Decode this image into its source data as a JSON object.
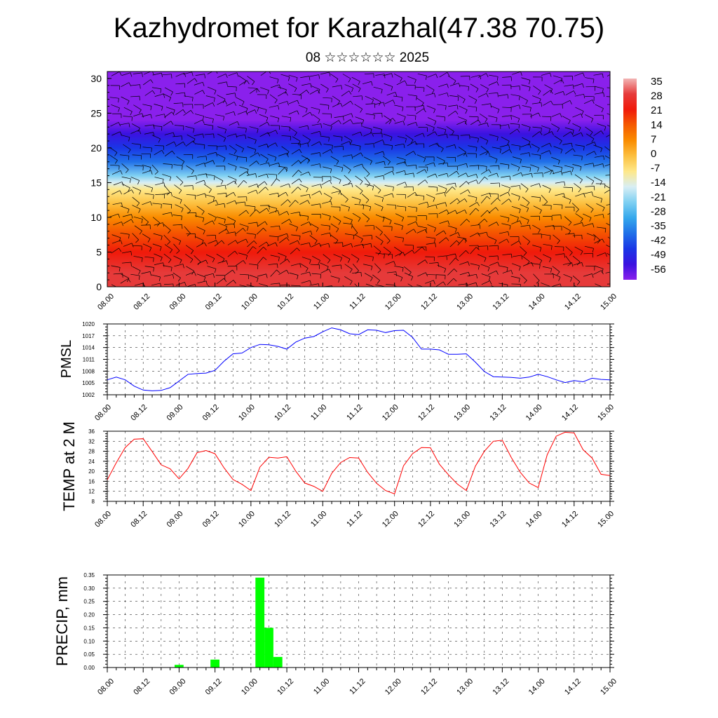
{
  "page": {
    "title": "Kazhydromet for Karazhal(47.38 70.75)",
    "subtitle": "08 ☆☆☆☆☆☆ 2025"
  },
  "time_ticks": [
    "08.00",
    "08.12",
    "09.00",
    "09.12",
    "10.00",
    "10.12",
    "11.00",
    "11.12",
    "12.00",
    "12.12",
    "13.00",
    "13.12",
    "14.00",
    "14.12",
    "15.00"
  ],
  "chart_data": [
    {
      "type": "heatmap",
      "title": "",
      "xlabel": "",
      "ylabel": "",
      "ylim": [
        0,
        31
      ],
      "yticks": [
        0,
        5,
        10,
        15,
        20,
        25,
        30
      ],
      "colorbar": {
        "labels": [
          "35",
          "28",
          "21",
          "14",
          "7",
          "0",
          "-7",
          "-14",
          "-21",
          "-28",
          "-35",
          "-42",
          "-49",
          "-56"
        ],
        "colors": [
          "#f2b5b5",
          "#e63a3a",
          "#f01a0a",
          "#f55a00",
          "#fa8c00",
          "#fcc040",
          "#fee88a",
          "#d8eef4",
          "#7fd0f2",
          "#35a8ec",
          "#2070e8",
          "#1a36e6",
          "#3a12e0",
          "#8a20ec"
        ]
      },
      "overlay": "wind barbs (black)",
      "profile": {
        "heights": [
          0,
          2,
          5,
          8,
          10,
          12,
          14,
          15,
          16,
          18,
          20,
          22,
          24,
          26,
          28,
          31
        ],
        "temperatures": [
          32,
          28,
          24,
          16,
          12,
          5,
          -3,
          -10,
          -20,
          -30,
          -40,
          -48,
          -54,
          -54,
          -56,
          -60
        ]
      }
    },
    {
      "type": "line",
      "ylabel": "PMSL",
      "ylim": [
        1002,
        1020
      ],
      "yticks": [
        1002,
        1005,
        1008,
        1011,
        1014,
        1017,
        1020
      ],
      "color": "#0000ff",
      "x_hours": [
        0,
        3,
        6,
        9,
        12,
        15,
        18,
        21,
        24,
        27,
        30,
        33,
        36,
        39,
        42,
        45,
        48,
        51,
        54,
        57,
        60,
        63,
        66,
        69,
        72,
        75,
        78,
        81,
        84,
        87,
        90,
        93,
        96,
        99,
        102,
        105,
        108,
        111,
        114,
        117,
        120,
        123,
        126,
        129,
        132,
        135,
        138,
        141,
        144,
        147,
        150,
        153,
        156,
        159,
        162,
        165,
        168
      ],
      "values": [
        1005.8,
        1006.5,
        1005.8,
        1004.2,
        1003.2,
        1003.0,
        1003.1,
        1003.8,
        1005.5,
        1007.2,
        1007.4,
        1007.5,
        1008.2,
        1010.5,
        1012.4,
        1012.6,
        1014.0,
        1014.8,
        1014.7,
        1014.3,
        1013.6,
        1015.4,
        1016.4,
        1016.8,
        1018.0,
        1019.0,
        1018.5,
        1017.5,
        1017.3,
        1018.5,
        1018.4,
        1017.8,
        1018.3,
        1018.4,
        1016.6,
        1013.6,
        1013.6,
        1013.4,
        1012.3,
        1012.3,
        1012.4,
        1010.3,
        1007.9,
        1006.6,
        1006.5,
        1006.4,
        1006.2,
        1006.5,
        1007.2,
        1006.6,
        1005.8,
        1005.1,
        1005.6,
        1005.3,
        1006.2,
        1005.9,
        1005.8
      ]
    },
    {
      "type": "line",
      "ylabel": "TEMP at 2 M",
      "ylim": [
        8,
        36
      ],
      "yticks": [
        8,
        12,
        16,
        20,
        24,
        28,
        32,
        36
      ],
      "color": "#ff0000",
      "x_hours": [
        0,
        3,
        6,
        9,
        12,
        15,
        18,
        21,
        24,
        27,
        30,
        33,
        36,
        39,
        42,
        45,
        48,
        51,
        54,
        57,
        60,
        63,
        66,
        69,
        72,
        75,
        78,
        81,
        84,
        87,
        90,
        93,
        96,
        99,
        102,
        105,
        108,
        111,
        114,
        117,
        120,
        123,
        126,
        129,
        132,
        135,
        138,
        141,
        144,
        147,
        150,
        153,
        156,
        159,
        162,
        165,
        168
      ],
      "values": [
        16.6,
        23.4,
        29.5,
        32.8,
        33.0,
        27.9,
        22.6,
        21.0,
        17.0,
        21.2,
        27.4,
        28.3,
        27.0,
        21.4,
        16.7,
        14.8,
        12.3,
        21.7,
        25.6,
        25.3,
        25.8,
        20.0,
        15.3,
        14.0,
        12.0,
        19.2,
        23.5,
        25.5,
        25.3,
        19.6,
        15.2,
        12.3,
        11.0,
        22.2,
        27.0,
        29.5,
        29.4,
        22.8,
        18.6,
        14.9,
        12.3,
        22.0,
        28.0,
        32.0,
        32.4,
        25.5,
        19.6,
        15.3,
        13.5,
        26.6,
        34.0,
        35.6,
        35.3,
        28.6,
        25.3,
        18.8,
        18.3
      ]
    },
    {
      "type": "bar",
      "ylabel": "PRECIP, mm",
      "ylim": [
        0,
        0.35
      ],
      "yticks": [
        0.0,
        0.05,
        0.1,
        0.15,
        0.2,
        0.25,
        0.3,
        0.35
      ],
      "ytick_labels": [
        "0.00",
        "0.05",
        "0.10",
        "0.15",
        "0.20",
        "0.25",
        "0.30",
        "0.35"
      ],
      "color": "#00ff00",
      "bars": [
        {
          "x_hours": 24,
          "value": 0.01
        },
        {
          "x_hours": 36,
          "value": 0.03
        },
        {
          "x_hours": 51,
          "value": 0.34
        },
        {
          "x_hours": 54,
          "value": 0.15
        },
        {
          "x_hours": 57,
          "value": 0.04
        }
      ]
    }
  ]
}
